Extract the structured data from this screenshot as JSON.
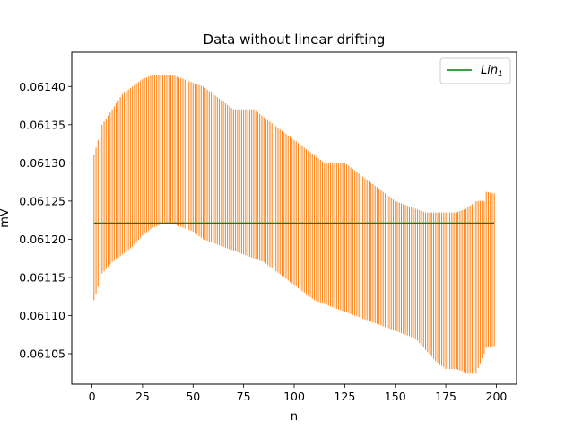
{
  "chart_data": {
    "type": "line",
    "title": "Data without linear drifting",
    "xlabel": "n",
    "ylabel": "mV",
    "xlim": [
      -10,
      210
    ],
    "ylim": [
      0.06101,
      0.061445
    ],
    "x_ticks": [
      0,
      25,
      50,
      75,
      100,
      125,
      150,
      175,
      200
    ],
    "y_ticks": [
      0.06105,
      0.0611,
      0.06115,
      0.0612,
      0.06125,
      0.0613,
      0.06135,
      0.0614
    ],
    "y_tick_labels": [
      "0.06105",
      "0.06110",
      "0.06115",
      "0.06120",
      "0.06125",
      "0.06130",
      "0.06135",
      "0.06140"
    ],
    "grid": false,
    "legend_placement": "top-right",
    "colors": {
      "errorbar": "#ff7f0e",
      "fit": "#008000"
    },
    "series": [
      {
        "name": "Lin_1",
        "legend_main": "Lin",
        "legend_sub": "1",
        "type": "line",
        "x": [
          1,
          199
        ],
        "y": [
          0.061221,
          0.061221
        ]
      },
      {
        "type": "errorbar",
        "x_start": 1,
        "x_end": 199,
        "x_step": 1,
        "upper_x": [
          1,
          5,
          10,
          15,
          20,
          25,
          30,
          35,
          40,
          45,
          50,
          55,
          60,
          65,
          70,
          75,
          80,
          85,
          90,
          95,
          100,
          105,
          110,
          115,
          120,
          125,
          130,
          135,
          140,
          145,
          150,
          155,
          160,
          165,
          170,
          175,
          180,
          185,
          190,
          194,
          195,
          199
        ],
        "upper_y": [
          0.06131,
          0.06135,
          0.06137,
          0.06139,
          0.0614,
          0.06141,
          0.061415,
          0.061415,
          0.061415,
          0.06141,
          0.061405,
          0.0614,
          0.06139,
          0.06138,
          0.06137,
          0.06137,
          0.06137,
          0.06136,
          0.06135,
          0.06134,
          0.06133,
          0.06132,
          0.06131,
          0.0613,
          0.0613,
          0.0613,
          0.06129,
          0.06128,
          0.06127,
          0.06126,
          0.06125,
          0.061245,
          0.06124,
          0.061235,
          0.061235,
          0.061235,
          0.061235,
          0.06124,
          0.06125,
          0.06125,
          0.061262,
          0.06126
        ],
        "lower_x": [
          1,
          5,
          10,
          15,
          20,
          25,
          30,
          35,
          40,
          45,
          50,
          55,
          60,
          65,
          70,
          75,
          80,
          85,
          90,
          95,
          100,
          105,
          110,
          115,
          120,
          125,
          130,
          135,
          140,
          145,
          150,
          155,
          160,
          165,
          170,
          175,
          180,
          185,
          190,
          194,
          195,
          199
        ],
        "lower_y": [
          0.06112,
          0.061155,
          0.06117,
          0.06118,
          0.06119,
          0.061205,
          0.061215,
          0.06122,
          0.06122,
          0.061215,
          0.06121,
          0.0612,
          0.061195,
          0.06119,
          0.061185,
          0.06118,
          0.061175,
          0.06117,
          0.06116,
          0.06115,
          0.06114,
          0.06113,
          0.06112,
          0.061115,
          0.06111,
          0.061105,
          0.0611,
          0.061095,
          0.06109,
          0.061085,
          0.06108,
          0.061075,
          0.06107,
          0.061055,
          0.06104,
          0.06103,
          0.06103,
          0.061025,
          0.061025,
          0.06105,
          0.061058,
          0.06106
        ]
      }
    ]
  }
}
